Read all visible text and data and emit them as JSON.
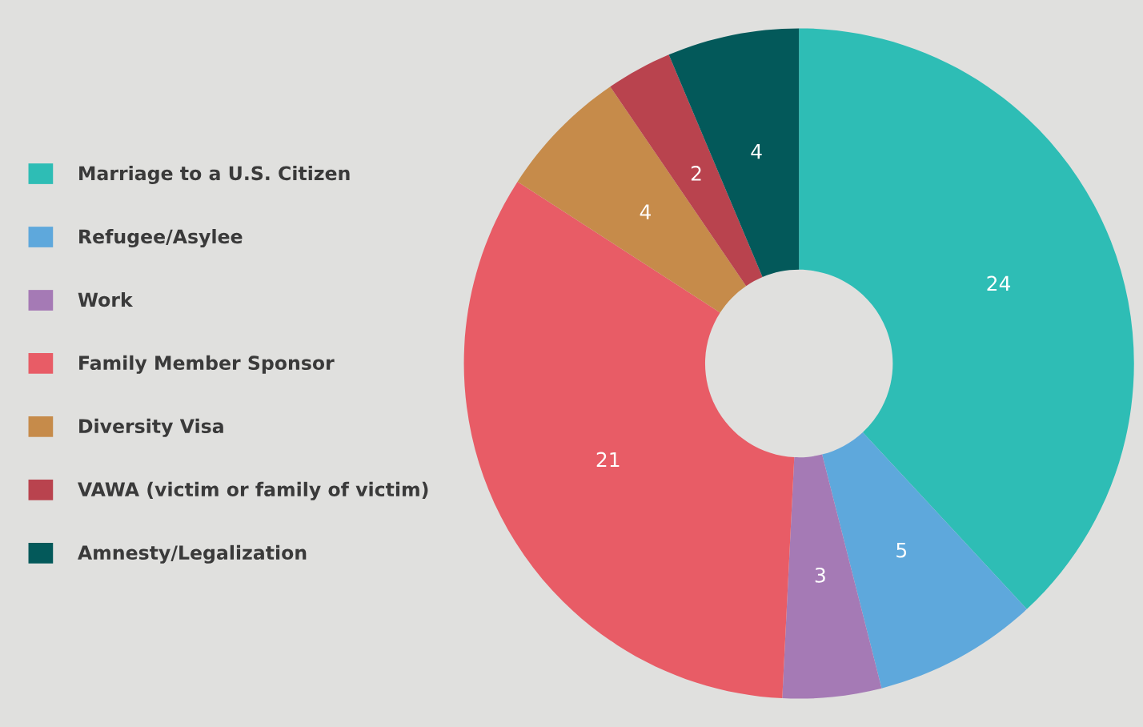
{
  "chart_data": {
    "type": "donut",
    "categories": [
      "Marriage to a U.S. Citizen",
      "Refugee/Asylee",
      "Work",
      "Family Member Sponsor",
      "Diversity Visa",
      "VAWA (victim or family of victim)",
      "Amnesty/Legalization"
    ],
    "values": [
      24,
      5,
      3,
      21,
      4,
      2,
      4
    ],
    "colors": [
      "#2ebdb5",
      "#5ea8dc",
      "#a57ab5",
      "#e85c66",
      "#c68b4a",
      "#b9434e",
      "#03595a"
    ],
    "data_labels": true,
    "legend": "left"
  }
}
